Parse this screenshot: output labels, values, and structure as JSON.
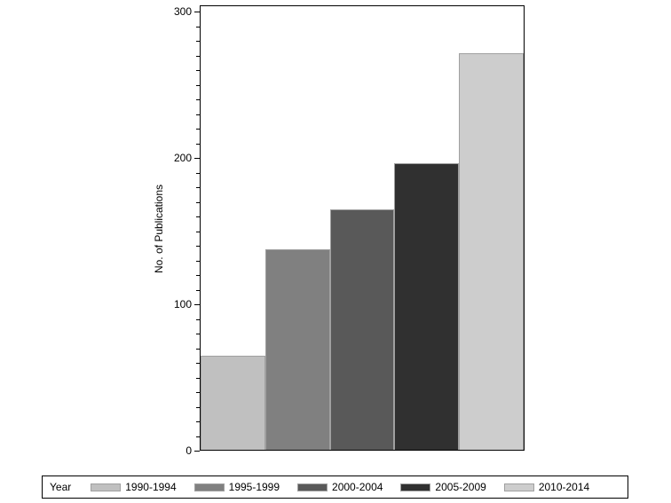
{
  "chart_data": {
    "type": "bar",
    "title": "",
    "xlabel": "",
    "ylabel": "No. of Publications",
    "ylim": [
      0,
      300
    ],
    "yticks": [
      0,
      100,
      200,
      300
    ],
    "minor_tick_step": 10,
    "legend_title": "Year",
    "legend_position": "bottom",
    "categories": [
      "1990-1994",
      "1995-1999",
      "2000-2004",
      "2005-2009",
      "2010-2014"
    ],
    "values": [
      64,
      137,
      164,
      196,
      271
    ],
    "colors": [
      "#c0c0c0",
      "#808080",
      "#595959",
      "#303030",
      "#cdcdcd"
    ]
  },
  "legend": {
    "title": "Year",
    "items": [
      {
        "label": "1990-1994",
        "color": "#c0c0c0"
      },
      {
        "label": "1995-1999",
        "color": "#808080"
      },
      {
        "label": "2000-2004",
        "color": "#595959"
      },
      {
        "label": "2005-2009",
        "color": "#303030"
      },
      {
        "label": "2010-2014",
        "color": "#cdcdcd"
      }
    ]
  },
  "axis": {
    "ylabel": "No. of Publications",
    "ticks": [
      "0",
      "100",
      "200",
      "300"
    ]
  }
}
